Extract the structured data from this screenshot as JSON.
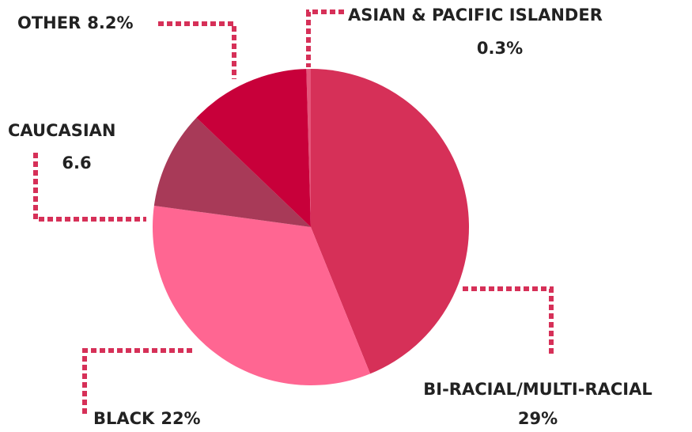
{
  "chart_data": {
    "type": "pie",
    "categories": [
      "ASIAN & PACIFIC ISLANDER",
      "BI-RACIAL/MULTI-RACIAL",
      "BLACK",
      "CAUCASIAN",
      "OTHER"
    ],
    "values": [
      0.3,
      29,
      22,
      6.6,
      8.2
    ],
    "value_labels": [
      "0.3%",
      "29%",
      "22%",
      "6.6",
      "8.2%"
    ],
    "colors": [
      "#e4557a",
      "#d63058",
      "#ff6692",
      "#a83a58",
      "#c8003a"
    ]
  }
}
